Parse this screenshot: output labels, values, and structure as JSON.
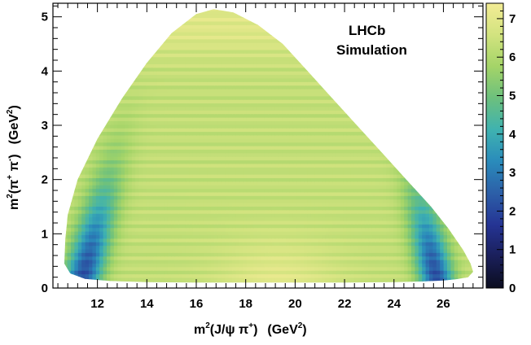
{
  "chart_data": {
    "type": "heatmap",
    "title": "",
    "annotations": [
      "LHCb",
      "Simulation"
    ],
    "xlabel": {
      "base": "m",
      "sup1": "2",
      "main": "(J/ψ π",
      "sup2": "+",
      "close": ")",
      "unit_open": "(GeV",
      "unit_sup": "2",
      "unit_close": ")"
    },
    "ylabel": {
      "base": "m",
      "sup1": "2",
      "open": "(π",
      "sup2": "+",
      "mid": " π",
      "sup3": "-",
      "close": ")",
      "unit_open": "(GeV",
      "unit_sup": "2",
      "unit_close": ")"
    },
    "xlim": [
      10.2,
      27.6
    ],
    "ylim": [
      0,
      5.25
    ],
    "zlim": [
      0,
      7.4
    ],
    "x_ticks": [
      "12",
      "14",
      "16",
      "18",
      "20",
      "22",
      "24",
      "26"
    ],
    "y_ticks": [
      "0",
      "1",
      "2",
      "3",
      "4",
      "5"
    ],
    "z_ticks": [
      "0",
      "1",
      "2",
      "3",
      "4",
      "5",
      "6",
      "7"
    ],
    "colormap": [
      "#0b0d1f",
      "#1a1f5a",
      "#253494",
      "#2c5fa8",
      "#2a8bbb",
      "#3fb2b0",
      "#6cc07d",
      "#a4d468",
      "#d2e37f",
      "#f3ec95"
    ],
    "boundary": {
      "x": [
        10.66,
        10.7,
        10.8,
        11.2,
        12,
        13,
        14,
        15,
        16,
        16.7,
        17.5,
        18.5,
        19.5,
        20.5,
        21.5,
        22.5,
        23.5,
        24.5,
        25.5,
        26.2,
        26.8,
        27.1,
        27.2,
        27.0,
        26.5,
        26,
        25,
        24,
        22,
        20,
        18,
        16,
        14,
        12.5,
        11.5,
        10.9,
        10.66
      ],
      "y": [
        0.45,
        0.9,
        1.35,
        2.0,
        2.75,
        3.5,
        4.15,
        4.7,
        5.05,
        5.14,
        5.08,
        4.85,
        4.5,
        4.0,
        3.5,
        3.0,
        2.5,
        2.0,
        1.5,
        1.1,
        0.7,
        0.45,
        0.3,
        0.2,
        0.16,
        0.14,
        0.12,
        0.11,
        0.1,
        0.1,
        0.1,
        0.1,
        0.11,
        0.13,
        0.17,
        0.27,
        0.45
      ]
    },
    "density_description": "Phase space density; low (~2-3) bands along left (m2(J/psi pi+)≈11-12) and right (≈25-26.5) edges, ~6-7 in the interior."
  }
}
